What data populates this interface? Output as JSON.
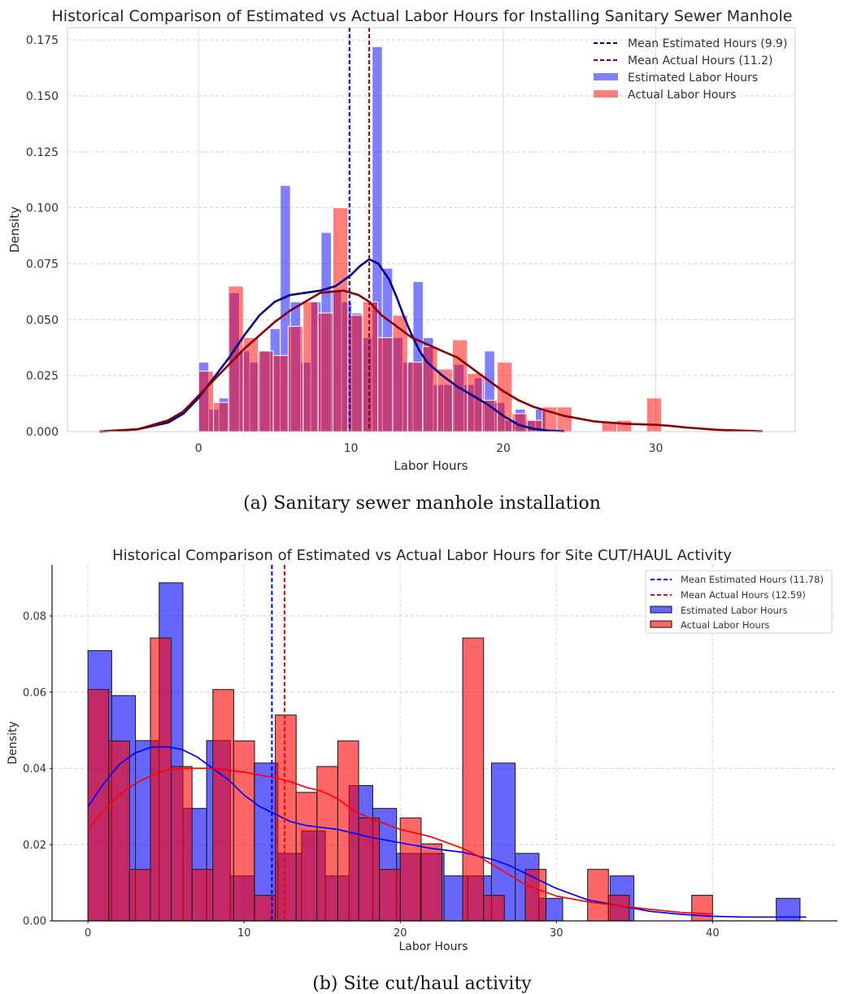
{
  "chart_data": [
    {
      "type": "bar",
      "subtype": "histogram-with-kde",
      "title": "Historical Comparison of Estimated vs Actual Labor Hours for Installing Sanitary Sewer Manhole",
      "caption": "(a) Sanitary sewer manhole installation",
      "xlabel": "Labor Hours",
      "ylabel": "Density",
      "xlim": [
        -8.6,
        39.15
      ],
      "ylim": [
        0,
        0.1805
      ],
      "grid": true,
      "legend_position": "top-right",
      "xticks": [
        {
          "v": 0,
          "label": "0"
        },
        {
          "v": 10,
          "label": "10"
        },
        {
          "v": 20,
          "label": "20"
        },
        {
          "v": 30,
          "label": "30"
        }
      ],
      "yticks": [
        {
          "v": 0,
          "label": "0.000"
        },
        {
          "v": 0.025,
          "label": "0.025"
        },
        {
          "v": 0.05,
          "label": "0.050"
        },
        {
          "v": 0.075,
          "label": "0.075"
        },
        {
          "v": 0.1,
          "label": "0.100"
        },
        {
          "v": 0.125,
          "label": "0.125"
        },
        {
          "v": 0.15,
          "label": "0.150"
        },
        {
          "v": 0.175,
          "label": "0.175"
        }
      ],
      "colors": {
        "est_bar": "rgba(0,0,255,0.5)",
        "act_bar": "rgba(255,0,0,0.5)",
        "bar_edge": "#ffffff",
        "est_line": "#00008b",
        "act_line": "#8b0000"
      },
      "series": [
        {
          "name": "Estimated Labor Hours",
          "bin_start": 0,
          "bin_width": 0.67,
          "values": [
            0.031,
            0.01,
            0.015,
            0.062,
            0.036,
            0.031,
            0.036,
            0.046,
            0.11,
            0.058,
            0.031,
            0.058,
            0.089,
            0.063,
            0.058,
            0.053,
            0.042,
            0.172,
            0.073,
            0.042,
            0.031,
            0.067,
            0.042,
            0.021,
            0.021,
            0.03,
            0.021,
            0.024,
            0.036,
            0.013,
            0.005,
            0.01,
            0.005,
            0.01
          ]
        },
        {
          "name": "Actual Labor Hours",
          "bin_start": 0,
          "bin_width": 0.98,
          "values": [
            0.027,
            0.013,
            0.065,
            0.042,
            0.036,
            0.034,
            0.047,
            0.058,
            0.053,
            0.1,
            0.052,
            0.058,
            0.042,
            0.052,
            0.031,
            0.038,
            0.028,
            0.041,
            0.026,
            0.014,
            0.031,
            0.008,
            0.005,
            0.011,
            0.011,
            0,
            0,
            0.004,
            0.005,
            0,
            0.015
          ]
        }
      ],
      "kde": [
        {
          "name": "Estimated",
          "points": [
            [
              -6.5,
              0
            ],
            [
              -4,
              0.001
            ],
            [
              -2,
              0.004
            ],
            [
              -1,
              0.008
            ],
            [
              0,
              0.015
            ],
            [
              1,
              0.024
            ],
            [
              2,
              0.033
            ],
            [
              3,
              0.043
            ],
            [
              4,
              0.052
            ],
            [
              5,
              0.058
            ],
            [
              6,
              0.061
            ],
            [
              7,
              0.062
            ],
            [
              8,
              0.063
            ],
            [
              9,
              0.065
            ],
            [
              10,
              0.07
            ],
            [
              10.6,
              0.074
            ],
            [
              11.2,
              0.077
            ],
            [
              11.8,
              0.075
            ],
            [
              12.5,
              0.068
            ],
            [
              13,
              0.06
            ],
            [
              13.5,
              0.051
            ],
            [
              14,
              0.043
            ],
            [
              14.5,
              0.036
            ],
            [
              15,
              0.031
            ],
            [
              16,
              0.025
            ],
            [
              17,
              0.02
            ],
            [
              18,
              0.016
            ],
            [
              19,
              0.012
            ],
            [
              20,
              0.007
            ],
            [
              21,
              0.003
            ],
            [
              22,
              0.0012
            ],
            [
              23,
              0.0004
            ],
            [
              24,
              0.0001
            ]
          ]
        },
        {
          "name": "Actual",
          "points": [
            [
              -6.5,
              0
            ],
            [
              -4,
              0.001
            ],
            [
              -2,
              0.005
            ],
            [
              -1,
              0.009
            ],
            [
              0,
              0.016
            ],
            [
              1,
              0.023
            ],
            [
              2,
              0.03
            ],
            [
              3,
              0.037
            ],
            [
              4,
              0.043
            ],
            [
              5,
              0.049
            ],
            [
              6,
              0.054
            ],
            [
              7,
              0.058
            ],
            [
              8,
              0.062
            ],
            [
              9.5,
              0.063
            ],
            [
              10.5,
              0.061
            ],
            [
              11.2,
              0.058
            ],
            [
              12,
              0.052
            ],
            [
              13,
              0.047
            ],
            [
              14,
              0.042
            ],
            [
              15,
              0.039
            ],
            [
              16,
              0.036
            ],
            [
              17,
              0.033
            ],
            [
              18,
              0.028
            ],
            [
              19,
              0.023
            ],
            [
              20,
              0.018
            ],
            [
              21,
              0.014
            ],
            [
              22,
              0.011
            ],
            [
              23,
              0.009
            ],
            [
              24,
              0.007
            ],
            [
              26,
              0.0045
            ],
            [
              28,
              0.0035
            ],
            [
              30,
              0.003
            ],
            [
              31,
              0.0025
            ],
            [
              32,
              0.0018
            ],
            [
              34,
              0.0008
            ],
            [
              37,
              0.0001
            ]
          ]
        }
      ],
      "means": [
        {
          "name": "Mean Estimated Hours",
          "value": 9.9,
          "legend": "Mean Estimated Hours (9.9)"
        },
        {
          "name": "Mean Actual Hours",
          "value": 11.2,
          "legend": "Mean Actual Hours (11.2)"
        }
      ],
      "legend": [
        "Mean Estimated Hours (9.9)",
        "Mean Actual Hours (11.2)",
        "Estimated Labor Hours",
        "Actual Labor Hours"
      ]
    },
    {
      "type": "bar",
      "subtype": "histogram-with-kde",
      "title": "Historical Comparison of Estimated vs Actual Labor Hours for Site CUT/HAUL Activity",
      "caption": "(b) Site cut/haul activity",
      "xlabel": "Labor Hours",
      "ylabel": "Density",
      "xlim": [
        -2.3,
        48.0
      ],
      "ylim": [
        0,
        0.0934
      ],
      "grid": true,
      "legend_position": "top-right",
      "xticks": [
        {
          "v": 0,
          "label": "0"
        },
        {
          "v": 10,
          "label": "10"
        },
        {
          "v": 20,
          "label": "20"
        },
        {
          "v": 30,
          "label": "30"
        },
        {
          "v": 40,
          "label": "40"
        }
      ],
      "yticks": [
        {
          "v": 0,
          "label": "0.00"
        },
        {
          "v": 0.02,
          "label": "0.02"
        },
        {
          "v": 0.04,
          "label": "0.04"
        },
        {
          "v": 0.06,
          "label": "0.06"
        },
        {
          "v": 0.08,
          "label": "0.08"
        }
      ],
      "colors": {
        "est_bar": "rgba(0,0,255,0.6)",
        "act_bar": "rgba(255,0,0,0.6)",
        "bar_edge": "#222222",
        "est_line": "#0000ff",
        "act_line": "#ff0000"
      },
      "series": [
        {
          "name": "Estimated Labor Hours",
          "bin_start": 0,
          "bin_width": 1.52,
          "values": [
            0.0709,
            0.0591,
            0.0473,
            0.0887,
            0.0295,
            0.0473,
            0.0118,
            0.0414,
            0.0177,
            0.0236,
            0.0118,
            0.0355,
            0.0295,
            0.0177,
            0.0177,
            0.0118,
            0.0118,
            0.0414,
            0.0177,
            0.0059,
            0,
            0,
            0.0118,
            0,
            0,
            0,
            0,
            0,
            0,
            0.0059
          ]
        },
        {
          "name": "Actual Labor Hours",
          "bin_start": 0,
          "bin_width": 1.3333,
          "values": [
            0.0607,
            0.0472,
            0.0135,
            0.0742,
            0.0405,
            0.0135,
            0.0607,
            0.0472,
            0.0067,
            0.054,
            0.0337,
            0.0405,
            0.0472,
            0.027,
            0.0135,
            0.027,
            0.0202,
            0,
            0.0742,
            0.0067,
            0,
            0.0135,
            0,
            0,
            0.0135,
            0.0067,
            0,
            0,
            0,
            0.0067
          ]
        }
      ],
      "kde": [
        {
          "name": "Estimated",
          "points": [
            [
              0,
              0.03
            ],
            [
              1,
              0.036
            ],
            [
              2,
              0.041
            ],
            [
              3,
              0.044
            ],
            [
              4,
              0.0455
            ],
            [
              5,
              0.0457
            ],
            [
              6,
              0.045
            ],
            [
              7,
              0.043
            ],
            [
              8,
              0.04
            ],
            [
              9,
              0.037
            ],
            [
              10,
              0.033
            ],
            [
              11,
              0.03
            ],
            [
              12,
              0.028
            ],
            [
              13,
              0.026
            ],
            [
              14,
              0.025
            ],
            [
              16,
              0.024
            ],
            [
              18,
              0.022
            ],
            [
              20,
              0.0205
            ],
            [
              22,
              0.019
            ],
            [
              24,
              0.018
            ],
            [
              26,
              0.016
            ],
            [
              27,
              0.0145
            ],
            [
              28,
              0.0125
            ],
            [
              29,
              0.0105
            ],
            [
              30,
              0.0085
            ],
            [
              32,
              0.0055
            ],
            [
              34,
              0.004
            ],
            [
              36,
              0.0025
            ],
            [
              38,
              0.0017
            ],
            [
              40,
              0.0012
            ],
            [
              42,
              0.001
            ],
            [
              44,
              0.001
            ],
            [
              46,
              0.001
            ]
          ]
        },
        {
          "name": "Actual",
          "points": [
            [
              0,
              0.024
            ],
            [
              1,
              0.029
            ],
            [
              2,
              0.033
            ],
            [
              3,
              0.036
            ],
            [
              4,
              0.038
            ],
            [
              5,
              0.0395
            ],
            [
              6,
              0.04
            ],
            [
              8,
              0.04
            ],
            [
              10,
              0.039
            ],
            [
              12,
              0.0375
            ],
            [
              13,
              0.0365
            ],
            [
              14,
              0.035
            ],
            [
              15,
              0.034
            ],
            [
              16,
              0.032
            ],
            [
              17,
              0.029
            ],
            [
              18,
              0.027
            ],
            [
              20,
              0.024
            ],
            [
              22,
              0.022
            ],
            [
              24,
              0.019
            ],
            [
              25,
              0.017
            ],
            [
              26,
              0.0145
            ],
            [
              27,
              0.012
            ],
            [
              28,
              0.0095
            ],
            [
              29,
              0.008
            ],
            [
              30,
              0.0065
            ],
            [
              32,
              0.005
            ],
            [
              34,
              0.004
            ],
            [
              36,
              0.003
            ],
            [
              38,
              0.0022
            ],
            [
              40,
              0.0018
            ]
          ]
        }
      ],
      "means": [
        {
          "name": "Mean Estimated Hours",
          "value": 11.78,
          "legend": "Mean Estimated Hours (11.78)"
        },
        {
          "name": "Mean Actual Hours",
          "value": 12.59,
          "legend": "Mean Actual Hours (12.59)"
        }
      ],
      "legend": [
        "Mean Estimated Hours (11.78)",
        "Mean Actual Hours (12.59)",
        "Estimated Labor Hours",
        "Actual Labor Hours"
      ]
    }
  ]
}
